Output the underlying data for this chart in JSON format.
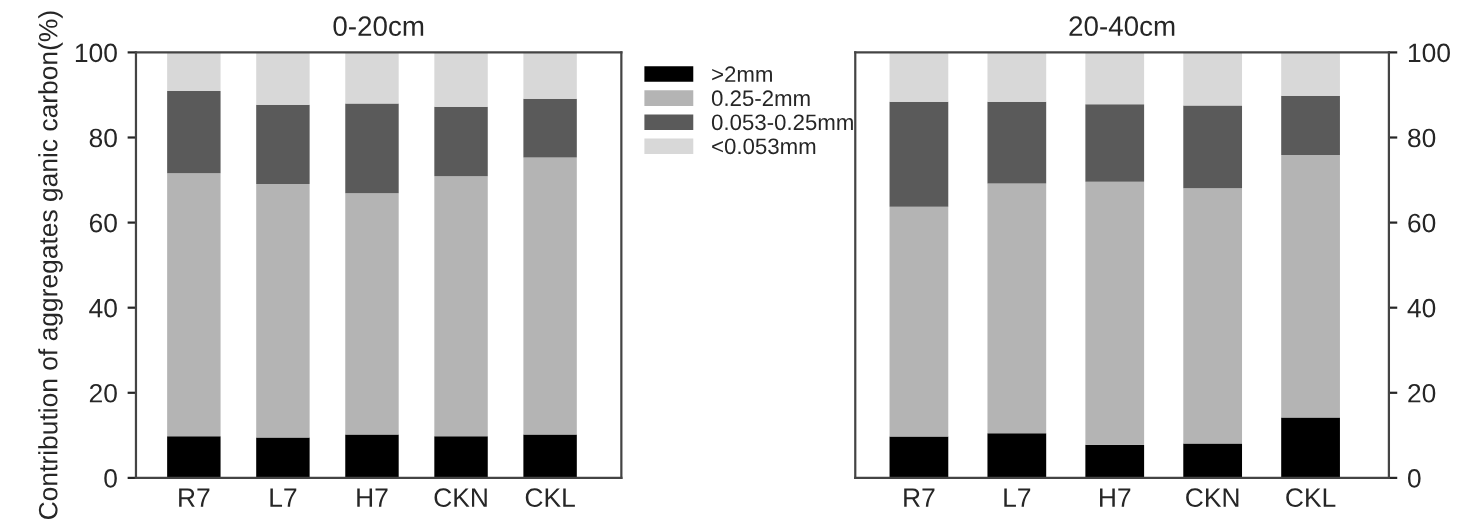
{
  "chart_data": [
    {
      "type": "bar",
      "title": "0-20cm",
      "ylabel": "Contribution of aggregates ganic carbon(%)",
      "categories": [
        "R7",
        "L7",
        "H7",
        "CKN",
        "CKL"
      ],
      "stacked": true,
      "ylim": [
        0,
        100
      ],
      "yticks": [
        0,
        20,
        40,
        60,
        80,
        100
      ],
      "legend": "right",
      "grid": false,
      "series": [
        {
          "name": ">2mm",
          "color": "#000000",
          "values": [
            9.8,
            9.5,
            10.2,
            9.8,
            10.2
          ]
        },
        {
          "name": "0.25-2mm",
          "color": "#b4b4b4",
          "values": [
            61.8,
            59.6,
            56.7,
            61.1,
            65.1
          ]
        },
        {
          "name": "0.053-0.25mm",
          "color": "#5a5a5a",
          "values": [
            19.3,
            18.6,
            21.1,
            16.3,
            13.8
          ]
        },
        {
          "name": "<0.053mm",
          "color": "#d8d8d8",
          "values": [
            9.1,
            12.3,
            12.0,
            12.8,
            10.9
          ]
        }
      ]
    },
    {
      "type": "bar",
      "title": "20-40cm",
      "categories": [
        "R7",
        "L7",
        "H7",
        "CKN",
        "CKL"
      ],
      "stacked": true,
      "ylim": [
        0,
        100
      ],
      "yticks": [
        0,
        20,
        40,
        60,
        80,
        100
      ],
      "grid": false,
      "series": [
        {
          "color": "#000000",
          "values": [
            9.7,
            10.5,
            7.8,
            8.1,
            14.2
          ]
        },
        {
          "color": "#b4b4b4",
          "values": [
            54.0,
            58.7,
            61.8,
            60.0,
            61.7
          ]
        },
        {
          "color": "#5a5a5a",
          "values": [
            24.7,
            19.2,
            18.2,
            19.4,
            13.9
          ]
        },
        {
          "color": "#d8d8d8",
          "values": [
            11.6,
            11.6,
            12.2,
            12.5,
            10.2
          ]
        }
      ]
    }
  ]
}
